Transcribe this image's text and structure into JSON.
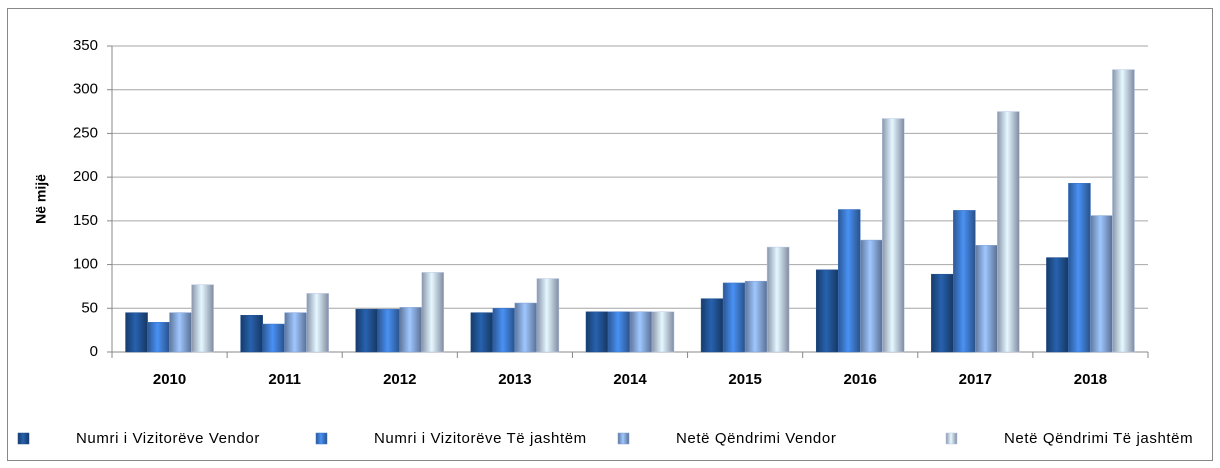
{
  "chart_data": {
    "type": "bar",
    "y_label": "Në mijë",
    "categories": [
      "2010",
      "2011",
      "2012",
      "2013",
      "2014",
      "2015",
      "2016",
      "2017",
      "2018"
    ],
    "series": [
      {
        "name": "Numri i Vizitorëve Vendor",
        "color": "#1f4e8c",
        "values": [
          45,
          42,
          49,
          45,
          46,
          61,
          94,
          89,
          108
        ]
      },
      {
        "name": "Numri i Vizitorëve Të jashtëm",
        "color": "#3a74c4",
        "values": [
          34,
          32,
          49,
          50,
          46,
          79,
          163,
          162,
          193
        ]
      },
      {
        "name": "Netë Qëndrimi Vendor",
        "color": "#7f9fd0",
        "values": [
          45,
          45,
          51,
          56,
          46,
          81,
          128,
          122,
          156
        ]
      },
      {
        "name": "Netë Qëndrimi Të jashtëm",
        "color": "#b7c6e4",
        "values": [
          77,
          67,
          91,
          84,
          46,
          120,
          267,
          275,
          323
        ]
      }
    ],
    "ylim": [
      0,
      350
    ],
    "yticks": [
      0,
      50,
      100,
      150,
      200,
      250,
      300,
      350
    ],
    "grid": true,
    "legend": "bottom"
  }
}
